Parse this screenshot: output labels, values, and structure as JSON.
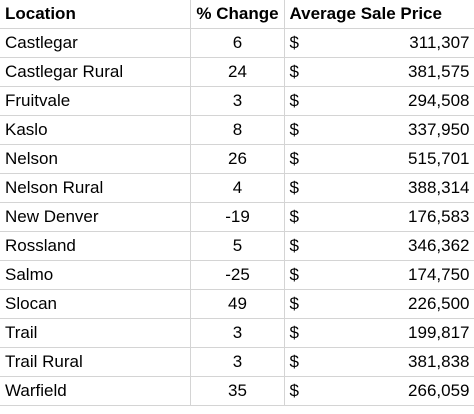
{
  "headers": {
    "location": "Location",
    "change": "% Change",
    "price": "Average Sale Price"
  },
  "currency_symbol": "$",
  "rows": [
    {
      "location": "Castlegar",
      "change": "6",
      "price": "311,307"
    },
    {
      "location": "Castlegar Rural",
      "change": "24",
      "price": "381,575"
    },
    {
      "location": "Fruitvale",
      "change": "3",
      "price": "294,508"
    },
    {
      "location": "Kaslo",
      "change": "8",
      "price": "337,950"
    },
    {
      "location": "Nelson",
      "change": "26",
      "price": "515,701"
    },
    {
      "location": "Nelson Rural",
      "change": "4",
      "price": "388,314"
    },
    {
      "location": "New Denver",
      "change": "-19",
      "price": "176,583"
    },
    {
      "location": "Rossland",
      "change": "5",
      "price": "346,362"
    },
    {
      "location": "Salmo",
      "change": "-25",
      "price": "174,750"
    },
    {
      "location": "Slocan",
      "change": "49",
      "price": "226,500"
    },
    {
      "location": "Trail",
      "change": "3",
      "price": "199,817"
    },
    {
      "location": "Trail Rural",
      "change": "3",
      "price": "381,838"
    },
    {
      "location": "Warfield",
      "change": "35",
      "price": "266,059"
    }
  ]
}
